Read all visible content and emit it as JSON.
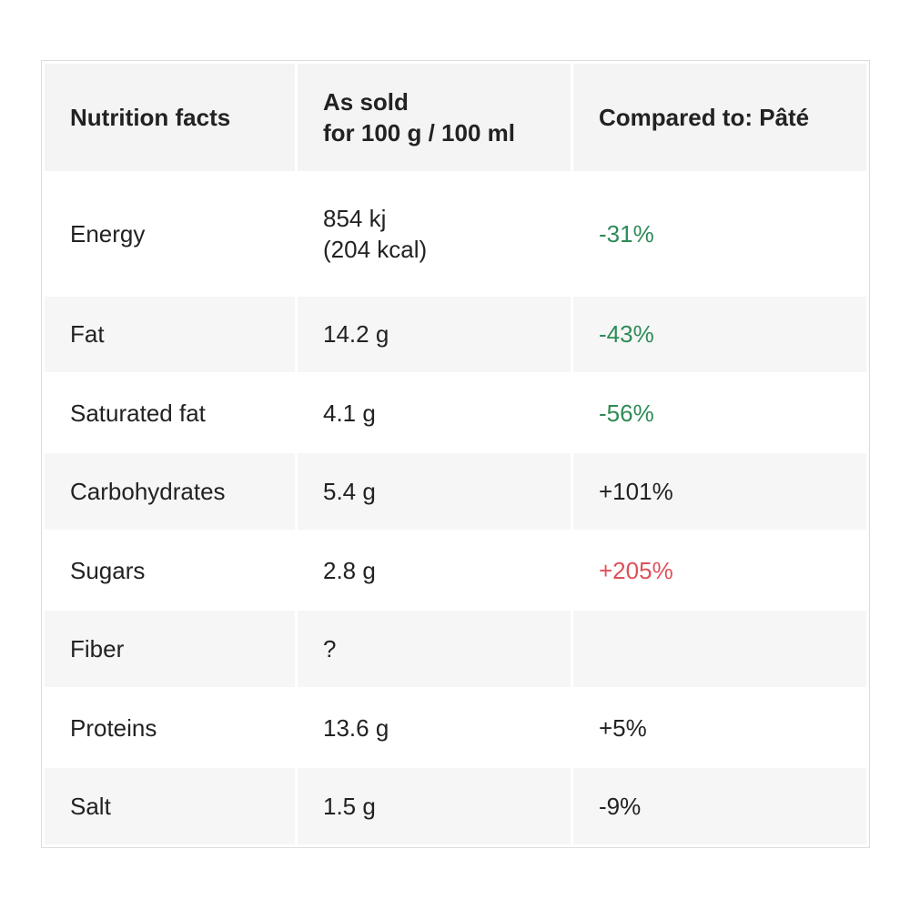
{
  "header": {
    "nutrient": "Nutrition facts",
    "as_sold_line1": "As sold",
    "as_sold_line2": "for 100 g / 100 ml",
    "compared": "Compared to: Pâté"
  },
  "rows": [
    {
      "name": "Energy",
      "value_line1": "854 kj",
      "value_line2": "(204 kcal)",
      "compare": "-31%",
      "compare_color": "#2e8b57"
    },
    {
      "name": "Fat",
      "value": "14.2 g",
      "compare": "-43%",
      "compare_color": "#2e8b57"
    },
    {
      "name": "Saturated fat",
      "value": "4.1 g",
      "compare": "-56%",
      "compare_color": "#2e8b57",
      "indent": true
    },
    {
      "name": "Carbohydrates",
      "value": "5.4 g",
      "compare": "+101%",
      "compare_color": "#222222"
    },
    {
      "name": "Sugars",
      "value": "2.8 g",
      "compare": "+205%",
      "compare_color": "#e0505a",
      "indent": true
    },
    {
      "name": "Fiber",
      "value": "?",
      "compare": ""
    },
    {
      "name": "Proteins",
      "value": "13.6 g",
      "compare": "+5%",
      "compare_color": "#222222"
    },
    {
      "name": "Salt",
      "value": "1.5 g",
      "compare": "-9%",
      "compare_color": "#222222"
    }
  ]
}
